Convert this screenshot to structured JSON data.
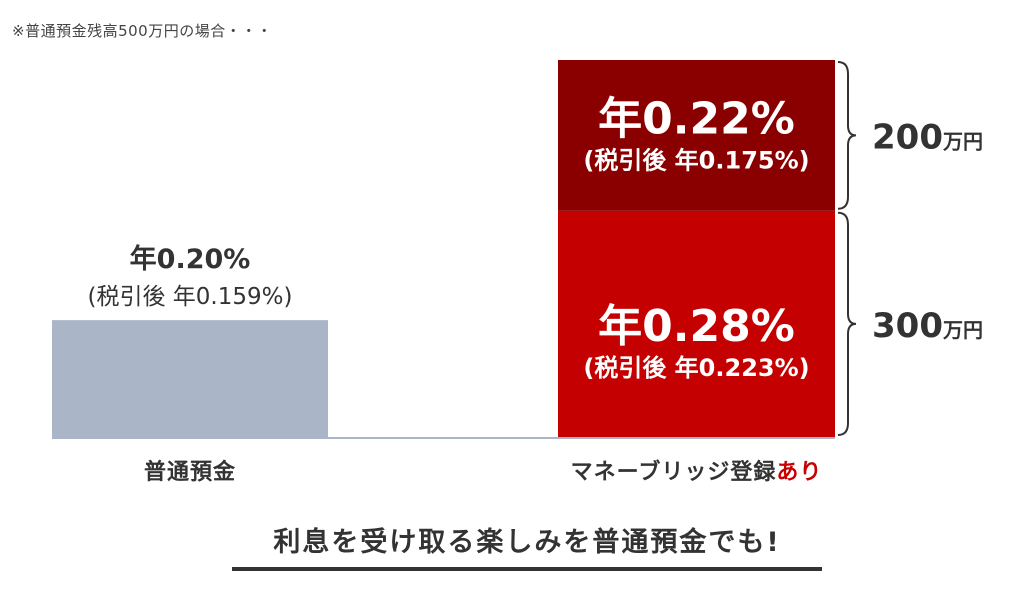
{
  "note": "※普通預金残高500万円の場合・・・",
  "tagline": "利息を受け取る楽しみを普通預金でも!",
  "chart_data": {
    "type": "bar",
    "categories": [
      {
        "label": "普通預金",
        "label_parts": [
          {
            "text": "普通預金",
            "color": "#333333"
          }
        ]
      },
      {
        "label": "マネーブリッジ登録あり",
        "label_parts": [
          {
            "text": "マネーブリッジ登録",
            "color": "#333333"
          },
          {
            "text": "あり",
            "color": "#c90000"
          }
        ]
      }
    ],
    "series": [
      {
        "segments": [
          {
            "category": 0,
            "amount": 500,
            "rate": "年0.20%",
            "after_tax": "(税引後 年0.159%)",
            "color": "#abb5c8",
            "label_color": "#333333",
            "label_outside": true
          }
        ]
      },
      {
        "segments": [
          {
            "category": 1,
            "amount": 300,
            "rate": "年0.28%",
            "after_tax": "(税引後 年0.223%)",
            "color": "#c50000",
            "label_color": "#ffffff",
            "bracket_value": "300",
            "bracket_unit": "万円"
          },
          {
            "category": 1,
            "amount": 200,
            "rate": "年0.22%",
            "after_tax": "(税引後 年0.175%)",
            "color": "#8a0000",
            "label_color": "#ffffff",
            "bracket_value": "200",
            "bracket_unit": "万円"
          }
        ]
      }
    ],
    "ylim": [
      0,
      500
    ]
  }
}
